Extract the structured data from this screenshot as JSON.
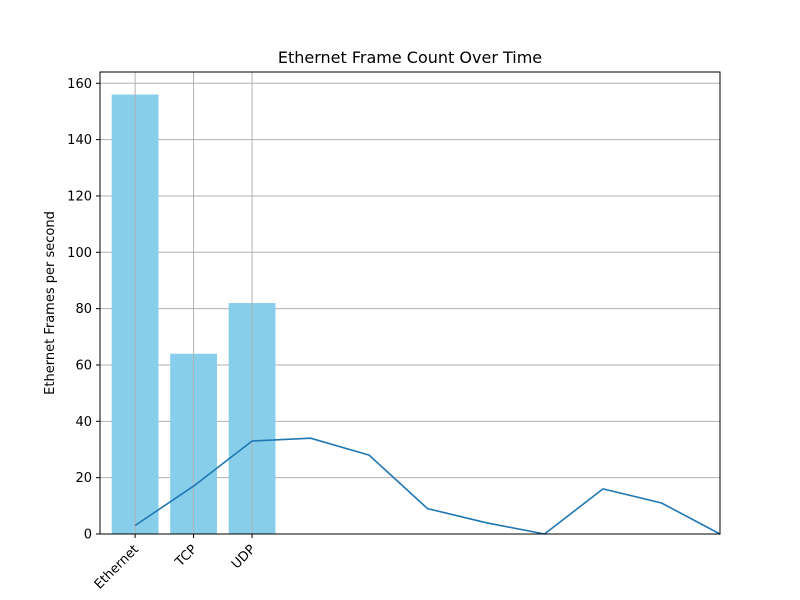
{
  "chart_data": {
    "type": "bar",
    "title": "Ethernet Frame Count Over Time",
    "xlabel": "",
    "ylabel": "Ethernet Frames per second",
    "ylim": [
      0,
      164
    ],
    "xlim": [
      -0.6,
      10.0
    ],
    "yticks": [
      0,
      20,
      40,
      60,
      80,
      100,
      120,
      140,
      160
    ],
    "grid": true,
    "categories": [
      "Ethernet",
      "TCP",
      "UDP"
    ],
    "bars": {
      "values": [
        156,
        64,
        82
      ],
      "color": "#87CEEB"
    },
    "line": {
      "x": [
        0,
        1,
        2,
        3,
        4,
        5,
        6,
        7,
        8,
        9,
        10
      ],
      "values": [
        3,
        17,
        33,
        34,
        28,
        9,
        4,
        0,
        16,
        11,
        0
      ],
      "color": "#1f77b4"
    }
  }
}
